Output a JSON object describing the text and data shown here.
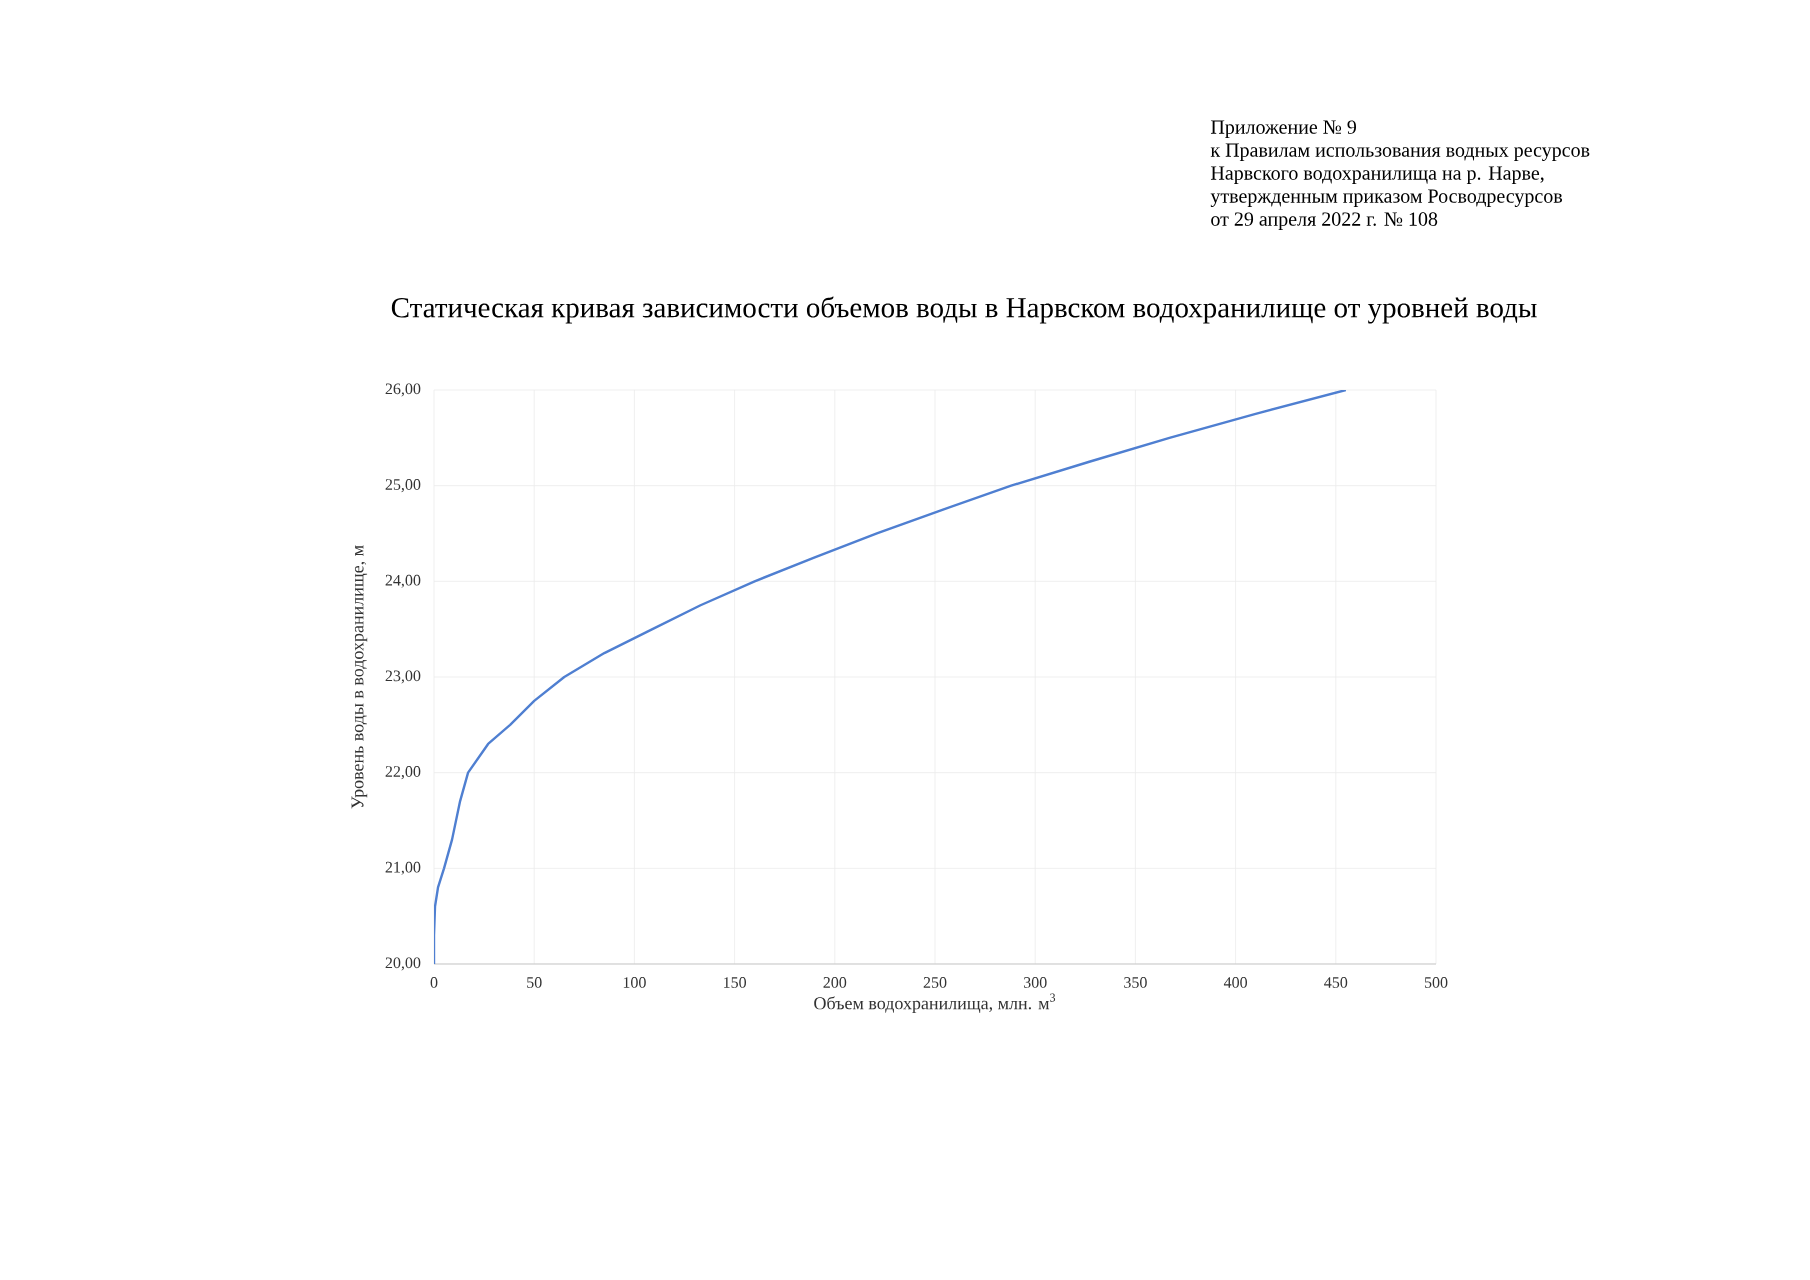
{
  "chart_data": {
    "type": "line",
    "title": "Статическая кривая зависимости объемов воды в Нарвском водохранилище от уровней воды",
    "xlabel": "Объем водохранилища, млн. м$^{3}$",
    "ylabel": "Уровень воды в водохранилище, м",
    "annotations": [
      "Приложение № 9",
      "к Правилам использования водных ресурсов",
      "Нарвского водохранилища на р. Нарве,",
      "утвержденным приказом Росводресурсов",
      "от 29 апреля 2022 г. № 108"
    ],
    "x": [
      0,
      0,
      0.5,
      2,
      5,
      9,
      13,
      17,
      27,
      38,
      50,
      65,
      85,
      109,
      133,
      160,
      190,
      221,
      254,
      288,
      327,
      367,
      410,
      455
    ],
    "values": [
      20.0,
      20.3,
      20.6,
      20.8,
      21.0,
      21.3,
      21.7,
      22.0,
      22.3,
      22.5,
      22.75,
      23.0,
      23.25,
      23.5,
      23.75,
      24.0,
      24.25,
      24.5,
      24.75,
      25.0,
      25.25,
      25.5,
      25.75,
      26.0
    ],
    "color": "#4f7fd1",
    "xlim": [
      0,
      500
    ],
    "xticks": [
      0,
      50,
      100,
      150,
      200,
      250,
      300,
      350,
      400,
      450,
      500
    ],
    "ylim": [
      20,
      26
    ],
    "yticks": [
      {
        "value": 20,
        "label": "20,00"
      },
      {
        "value": 21,
        "label": "21,00"
      },
      {
        "value": 22,
        "label": "22,00"
      },
      {
        "value": 23,
        "label": "23,00"
      },
      {
        "value": 24,
        "label": "24,00"
      },
      {
        "value": 25,
        "label": "25,00"
      },
      {
        "value": 26,
        "label": "26,00"
      }
    ],
    "grid": true
  }
}
